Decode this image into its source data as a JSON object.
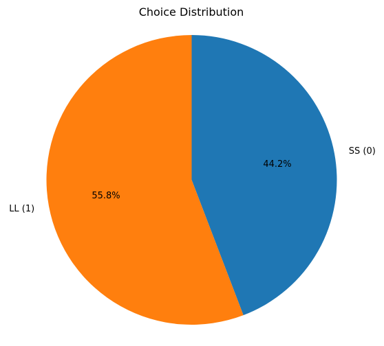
{
  "chart_data": {
    "type": "pie",
    "title": "Choice Distribution",
    "labels": [
      "SS (0)",
      "LL (1)"
    ],
    "values": [
      44.2,
      55.8
    ],
    "percent_labels": [
      "44.2%",
      "55.8%"
    ],
    "colors": [
      "#1f77b4",
      "#ff7f0e"
    ],
    "start_angle": 90,
    "direction": "clockwise"
  }
}
